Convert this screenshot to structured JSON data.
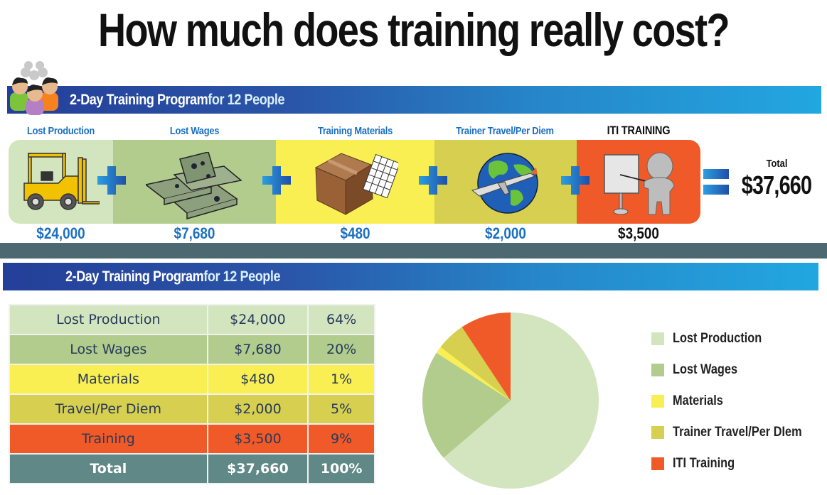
{
  "title": "How much does training really cost?",
  "top_section": {
    "banner": {
      "main": "2-Day Training Program",
      "suffix": " for 12 People"
    },
    "categories": [
      {
        "label": "Lost Production",
        "amount": "$24,000",
        "icon": "forklift-icon",
        "color": "#d3e5bf"
      },
      {
        "label": "Lost Wages",
        "amount": "$7,680",
        "icon": "money-stack-icon",
        "color": "#b1cc8d"
      },
      {
        "label": "Training Materials",
        "amount": "$480",
        "icon": "box-and-paper-icon",
        "color": "#f9ef52"
      },
      {
        "label": "Trainer Travel/Per Diem",
        "amount": "$2,000",
        "icon": "globe-airplane-icon",
        "color": "#d6cf4f"
      },
      {
        "label": "ITI TRAINING",
        "amount": "$3,500",
        "icon": "trainer-presentation-icon",
        "color": "#f05a28"
      }
    ],
    "operator_plus": "+",
    "operator_equals": "=",
    "total_label": "Total",
    "total_value": "$37,660"
  },
  "bottom_section": {
    "banner": {
      "main": "2-Day Training Program",
      "suffix": " for 12 People"
    },
    "table": {
      "rows": [
        {
          "label": "Lost Production",
          "value": "$24,000",
          "percent": "64%",
          "color": "#d3e5bf"
        },
        {
          "label": "Lost Wages",
          "value": "$7,680",
          "percent": "20%",
          "color": "#b1cc8d"
        },
        {
          "label": "Materials",
          "value": "$480",
          "percent": "1%",
          "color": "#f9ef52"
        },
        {
          "label": "Travel/Per Diem",
          "value": "$2,000",
          "percent": "5%",
          "color": "#d6cf4f"
        },
        {
          "label": "Training",
          "value": "$3,500",
          "percent": "9%",
          "color": "#f05a28"
        }
      ],
      "total": {
        "label": "Total",
        "value": "$37,660",
        "percent": "100%",
        "color": "#5f8886"
      }
    }
  },
  "chart_data": {
    "type": "pie",
    "title": "",
    "categories": [
      "Lost Production",
      "Lost Wages",
      "Materials",
      "Trainer Travel/Per DIem",
      "ITI Training"
    ],
    "values": [
      24000,
      7680,
      480,
      2000,
      3500
    ],
    "percentages": [
      64,
      20,
      1,
      5,
      9
    ],
    "colors": [
      "#d3e5bf",
      "#b1cc8d",
      "#f9ef52",
      "#d6cf4f",
      "#f05a28"
    ],
    "legend_position": "right",
    "start_angle": "12 o'clock, clockwise"
  },
  "colors": {
    "banner_start": "#243f99",
    "banner_end": "#22a7e0",
    "divider": "#4c6870",
    "label_blue": "#1b6fc0"
  }
}
